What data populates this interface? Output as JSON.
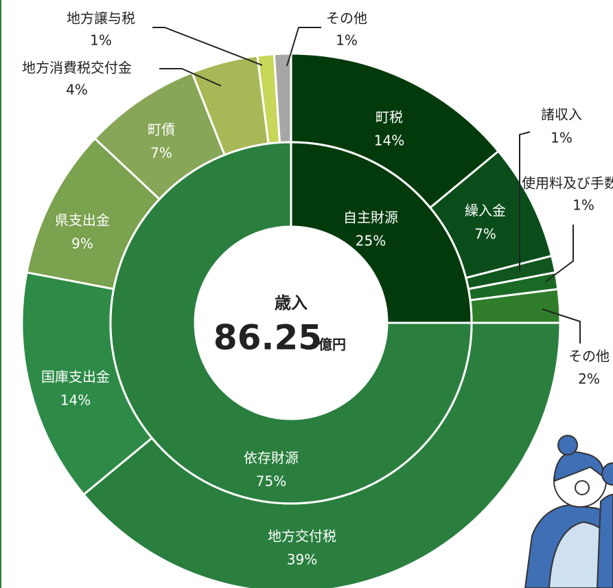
{
  "chart_data": {
    "type": "nested-donut",
    "center_title": "歳入",
    "center_value": "86.25",
    "center_unit": "億円",
    "inner": {
      "categories": [
        "自主財源",
        "依存財源"
      ],
      "values": [
        25,
        75
      ],
      "value_labels": [
        "25%",
        "75%"
      ],
      "colors": [
        "#033a0b",
        "#2a7f3f"
      ]
    },
    "outer": {
      "categories": [
        "町税",
        "繰入金",
        "諸収入",
        "使用料及び手数料",
        "その他",
        "地方交付税",
        "国庫支出金",
        "県支出金",
        "町債",
        "地方消費税交付金",
        "地方譲与税",
        "その他"
      ],
      "values": [
        14,
        7,
        1,
        1,
        2,
        39,
        14,
        9,
        7,
        4,
        1,
        1
      ],
      "value_labels": [
        "14%",
        "7%",
        "1%",
        "1%",
        "2%",
        "39%",
        "14%",
        "9%",
        "7%",
        "4%",
        "1%",
        "1%"
      ],
      "colors": [
        "#033a0b",
        "#0a4d1a",
        "#10561e",
        "#1a6a25",
        "#2f7d2a",
        "#2a7f3f",
        "#2e8b47",
        "#7ba24f",
        "#88a658",
        "#a8b856",
        "#c8d65a",
        "#a6a6a6"
      ]
    }
  }
}
